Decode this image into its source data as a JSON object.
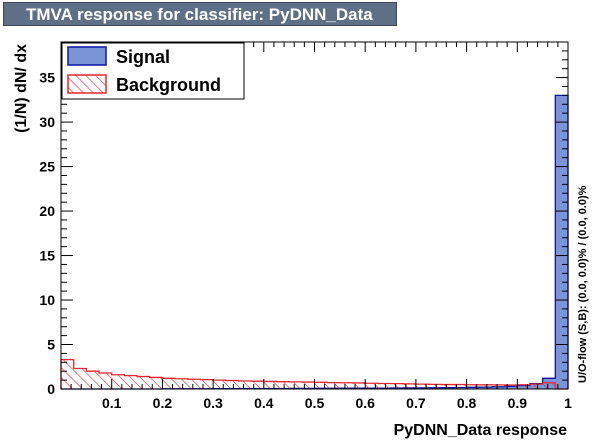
{
  "title": "TMVA response for classifier: PyDNN_Data",
  "chart_data": {
    "type": "histogram",
    "xlabel": "PyDNN_Data response",
    "ylabel": "(1/N) dN/ dx",
    "xlim": [
      0.0,
      1.0
    ],
    "ylim": [
      0,
      39
    ],
    "x_ticks": [
      "0.1",
      "0.2",
      "0.3",
      "0.4",
      "0.5",
      "0.6",
      "0.7",
      "0.8",
      "0.9",
      "1"
    ],
    "y_ticks": [
      "0",
      "5",
      "10",
      "15",
      "20",
      "25",
      "30",
      "35"
    ],
    "bins": 40,
    "legend": {
      "position": "top-left",
      "entries": [
        "Signal",
        "Background"
      ]
    },
    "overflow_note": "U/O-flow (S,B): (0.0, 0.0)% / (0.0, 0.0)%",
    "series": [
      {
        "name": "Signal",
        "fill": "#7b94d6",
        "line": "#0a14a6",
        "values": [
          0.0,
          0.0,
          0.0,
          0.0,
          0.0,
          0.0,
          0.0,
          0.0,
          0.02,
          0.02,
          0.03,
          0.03,
          0.04,
          0.04,
          0.05,
          0.05,
          0.06,
          0.06,
          0.07,
          0.07,
          0.08,
          0.08,
          0.09,
          0.09,
          0.1,
          0.1,
          0.11,
          0.12,
          0.13,
          0.14,
          0.15,
          0.17,
          0.19,
          0.21,
          0.25,
          0.3,
          0.4,
          0.6,
          1.2,
          33.0
        ]
      },
      {
        "name": "Background",
        "fill": "#e8262f",
        "line": "#e8262f",
        "values": [
          3.3,
          2.3,
          2.0,
          1.8,
          1.6,
          1.5,
          1.4,
          1.3,
          1.2,
          1.15,
          1.1,
          1.05,
          1.0,
          0.95,
          0.9,
          0.88,
          0.85,
          0.82,
          0.8,
          0.78,
          0.75,
          0.72,
          0.7,
          0.68,
          0.65,
          0.62,
          0.6,
          0.58,
          0.55,
          0.52,
          0.5,
          0.5,
          0.48,
          0.47,
          0.46,
          0.45,
          0.48,
          0.55,
          0.7,
          0.0
        ]
      }
    ]
  }
}
